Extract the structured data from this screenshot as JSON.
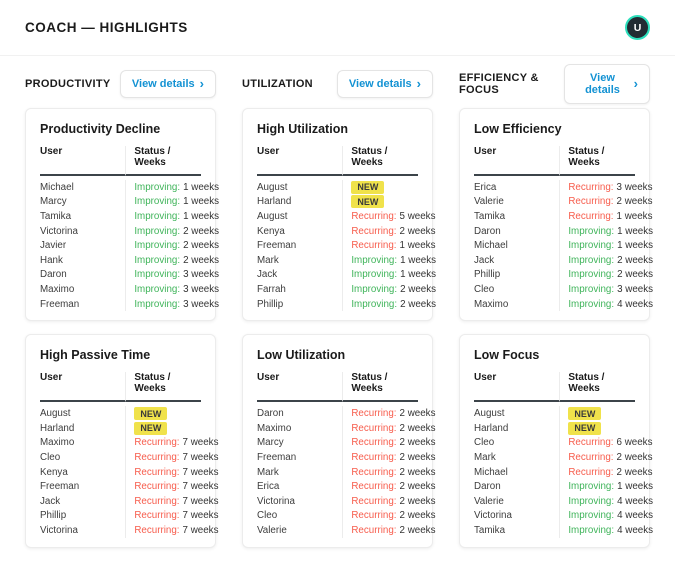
{
  "header": {
    "title": "COACH — HIGHLIGHTS",
    "avatar_initial": "U"
  },
  "view_details_label": "View details",
  "view_details_chevron": "›",
  "table": {
    "user_header": "User",
    "status_header": "Status / Weeks"
  },
  "colors": {
    "accent": "#1392d3",
    "improving": "#3fb45a",
    "recurring": "#f75c4c",
    "new-badge": "#f0e24b",
    "avatar-ring": "#2ddfbc"
  },
  "columns": [
    {
      "label": "PRODUCTIVITY",
      "cards": [
        {
          "title": "Productivity Decline",
          "rows": [
            {
              "user": "Michael",
              "status": "Improving",
              "weeks": "1 weeks"
            },
            {
              "user": "Marcy",
              "status": "Improving",
              "weeks": "1 weeks"
            },
            {
              "user": "Tamika",
              "status": "Improving",
              "weeks": "1 weeks"
            },
            {
              "user": "Victorina",
              "status": "Improving",
              "weeks": "2 weeks"
            },
            {
              "user": "Javier",
              "status": "Improving",
              "weeks": "2 weeks"
            },
            {
              "user": "Hank",
              "status": "Improving",
              "weeks": "2 weeks"
            },
            {
              "user": "Daron",
              "status": "Improving",
              "weeks": "3 weeks"
            },
            {
              "user": "Maximo",
              "status": "Improving",
              "weeks": "3 weeks"
            },
            {
              "user": "Freeman",
              "status": "Improving",
              "weeks": "3 weeks"
            }
          ]
        },
        {
          "title": "High Passive Time",
          "rows": [
            {
              "user": "August",
              "status": "NEW"
            },
            {
              "user": "Harland",
              "status": "NEW"
            },
            {
              "user": "Maximo",
              "status": "Recurring",
              "weeks": "7 weeks"
            },
            {
              "user": "Cleo",
              "status": "Recurring",
              "weeks": "7 weeks"
            },
            {
              "user": "Kenya",
              "status": "Recurring",
              "weeks": "7 weeks"
            },
            {
              "user": "Freeman",
              "status": "Recurring",
              "weeks": "7 weeks"
            },
            {
              "user": "Jack",
              "status": "Recurring",
              "weeks": "7 weeks"
            },
            {
              "user": "Phillip",
              "status": "Recurring",
              "weeks": "7 weeks"
            },
            {
              "user": "Victorina",
              "status": "Recurring",
              "weeks": "7 weeks"
            }
          ]
        }
      ]
    },
    {
      "label": "UTILIZATION",
      "cards": [
        {
          "title": "High Utilization",
          "rows": [
            {
              "user": "August",
              "status": "NEW"
            },
            {
              "user": "Harland",
              "status": "NEW"
            },
            {
              "user": "August",
              "status": "Recurring",
              "weeks": "5 weeks"
            },
            {
              "user": "Kenya",
              "status": "Recurring",
              "weeks": "2 weeks"
            },
            {
              "user": "Freeman",
              "status": "Recurring",
              "weeks": "1 weeks"
            },
            {
              "user": "Mark",
              "status": "Improving",
              "weeks": "1 weeks"
            },
            {
              "user": "Jack",
              "status": "Improving",
              "weeks": "1 weeks"
            },
            {
              "user": "Farrah",
              "status": "Improving",
              "weeks": "2 weeks"
            },
            {
              "user": "Phillip",
              "status": "Improving",
              "weeks": "2 weeks"
            }
          ]
        },
        {
          "title": "Low Utilization",
          "rows": [
            {
              "user": "Daron",
              "status": "Recurring",
              "weeks": "2 weeks"
            },
            {
              "user": "Maximo",
              "status": "Recurring",
              "weeks": "2 weeks"
            },
            {
              "user": "Marcy",
              "status": "Recurring",
              "weeks": "2 weeks"
            },
            {
              "user": "Freeman",
              "status": "Recurring",
              "weeks": "2 weeks"
            },
            {
              "user": "Mark",
              "status": "Recurring",
              "weeks": "2 weeks"
            },
            {
              "user": "Erica",
              "status": "Recurring",
              "weeks": "2 weeks"
            },
            {
              "user": "Victorina",
              "status": "Recurring",
              "weeks": "2 weeks"
            },
            {
              "user": "Cleo",
              "status": "Recurring",
              "weeks": "2 weeks"
            },
            {
              "user": "Valerie",
              "status": "Recurring",
              "weeks": "2 weeks"
            }
          ]
        }
      ]
    },
    {
      "label": "EFFICIENCY & FOCUS",
      "cards": [
        {
          "title": "Low Efficiency",
          "rows": [
            {
              "user": "Erica",
              "status": "Recurring",
              "weeks": "3 weeks"
            },
            {
              "user": "Valerie",
              "status": "Recurring",
              "weeks": "2 weeks"
            },
            {
              "user": "Tamika",
              "status": "Recurring",
              "weeks": "1 weeks"
            },
            {
              "user": "Daron",
              "status": "Improving",
              "weeks": "1 weeks"
            },
            {
              "user": "Michael",
              "status": "Improving",
              "weeks": "1 weeks"
            },
            {
              "user": "Jack",
              "status": "Improving",
              "weeks": "2 weeks"
            },
            {
              "user": "Phillip",
              "status": "Improving",
              "weeks": "2 weeks"
            },
            {
              "user": "Cleo",
              "status": "Improving",
              "weeks": "3 weeks"
            },
            {
              "user": "Maximo",
              "status": "Improving",
              "weeks": "4 weeks"
            }
          ]
        },
        {
          "title": "Low Focus",
          "rows": [
            {
              "user": "August",
              "status": "NEW"
            },
            {
              "user": "Harland",
              "status": "NEW"
            },
            {
              "user": "Cleo",
              "status": "Recurring",
              "weeks": "6 weeks"
            },
            {
              "user": "Mark",
              "status": "Recurring",
              "weeks": "2 weeks"
            },
            {
              "user": "Michael",
              "status": "Recurring",
              "weeks": "2 weeks"
            },
            {
              "user": "Daron",
              "status": "Improving",
              "weeks": "1 weeks"
            },
            {
              "user": "Valerie",
              "status": "Improving",
              "weeks": "4 weeks"
            },
            {
              "user": "Victorina",
              "status": "Improving",
              "weeks": "4 weeks"
            },
            {
              "user": "Tamika",
              "status": "Improving",
              "weeks": "4 weeks"
            }
          ]
        }
      ]
    }
  ]
}
